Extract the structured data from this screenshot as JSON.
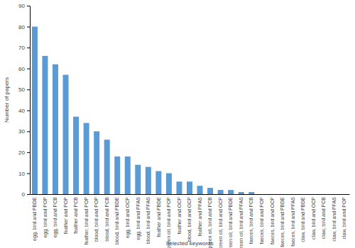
{
  "chart_data": {
    "type": "bar",
    "x_label": "Selected keywords",
    "y_label": "Number of papers",
    "categories": [
      "egg, bird and PBDE",
      "egg, bird and POP",
      "egg, bird and PCB",
      "feather and POP",
      "feather and PCB",
      "feather, bird and POP",
      "blood, bird and POP",
      "blood, bird and PCB",
      "blood, bird and PBDE",
      "egg, bird and OCP",
      "egg, bird and PFAS",
      "blood, bird and PFAS",
      "feather and PBDE",
      "preen oil, bird and POP",
      "feather and OCP",
      "blood, bird and OCP",
      "feather and PFAS",
      "preen oil, bird and PCB",
      "preen oil, bird and OCP",
      "preen oil, bird and PBDE",
      "preen oil, bird and PFAS",
      "faeces, bird and PCB",
      "faeces, bird and POP",
      "faeces, bird and OCP",
      "faeces, bird and PBDE",
      "faeces, bird and PFAS",
      "claw, bird and PBDE",
      "claw, bird and OCP",
      "claw, bird and PCB",
      "claw, bird and PFAS",
      "claw, bird and POP"
    ],
    "values": [
      80,
      66,
      62,
      57,
      37,
      34,
      30,
      26,
      18,
      18,
      14,
      13,
      11,
      10,
      6,
      6,
      4,
      3,
      2,
      2,
      1,
      1,
      0,
      0,
      0,
      0,
      0,
      0,
      0,
      0,
      0
    ],
    "color": "#5b9bd5",
    "ylim": [
      0,
      90
    ],
    "yticks": [
      0,
      10,
      20,
      30,
      40,
      50,
      60,
      70,
      80,
      90
    ],
    "grid": false
  }
}
